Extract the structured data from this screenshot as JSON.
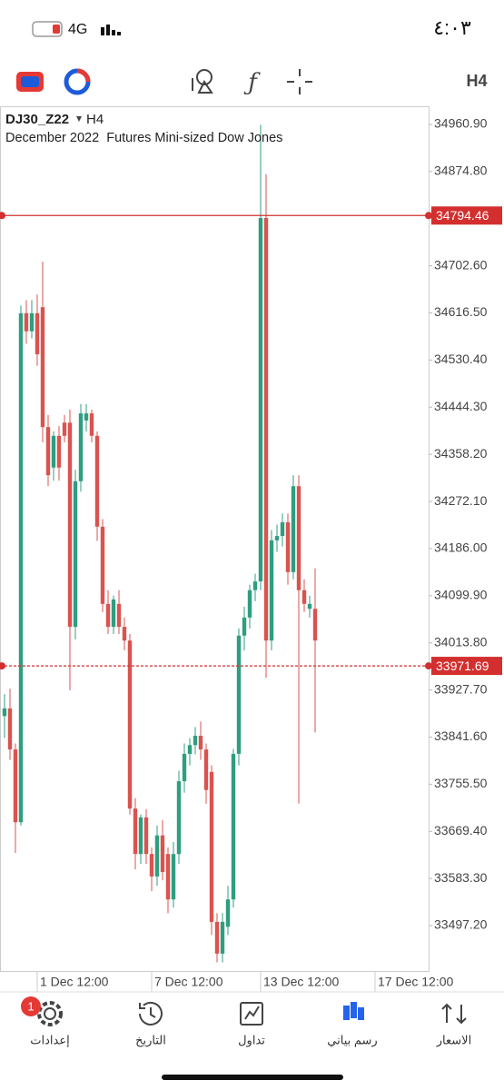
{
  "status_bar": {
    "time": "٤:٠٣",
    "network": "4G"
  },
  "toolbar": {
    "timeframe": "H4"
  },
  "chart_data": {
    "type": "candlestick",
    "symbol": "DJ30_Z22",
    "timeframe": "H4",
    "subtitle": "December 2022  Futures Mini-sized Dow Jones",
    "up_color": "#2f9e80",
    "down_color": "#d9534f",
    "ylim": [
      33412.6,
      34992.4
    ],
    "yticks": [
      {
        "value": 34960.9,
        "label": "34960.90"
      },
      {
        "value": 34874.8,
        "label": "34874.80"
      },
      {
        "value": 34702.6,
        "label": "34702.60"
      },
      {
        "value": 34616.5,
        "label": "34616.50"
      },
      {
        "value": 34530.4,
        "label": "34530.40"
      },
      {
        "value": 34444.3,
        "label": "34444.30"
      },
      {
        "value": 34358.2,
        "label": "34358.20"
      },
      {
        "value": 34272.1,
        "label": "34272.10"
      },
      {
        "value": 34186,
        "label": "34186.00"
      },
      {
        "value": 34099.9,
        "label": "34099.90"
      },
      {
        "value": 34013.8,
        "label": "34013.80"
      },
      {
        "value": 33927.7,
        "label": "33927.70"
      },
      {
        "value": 33841.6,
        "label": "33841.60"
      },
      {
        "value": 33755.5,
        "label": "33755.50"
      },
      {
        "value": 33669.4,
        "label": "33669.40"
      },
      {
        "value": 33583.3,
        "label": "33583.30"
      },
      {
        "value": 33497.2,
        "label": "33497.20"
      }
    ],
    "xlim": [
      -0.83,
      77.83
    ],
    "xticks": [
      {
        "value": 6,
        "label": "1 Dec 12:00"
      },
      {
        "value": 27,
        "label": "7 Dec 12:00"
      },
      {
        "value": 47,
        "label": "13 Dec 12:00"
      },
      {
        "value": 68,
        "label": "17 Dec 12:00"
      }
    ],
    "open": [
      33880,
      33894,
      33819,
      33686,
      34616,
      34583,
      34616,
      34627,
      34408,
      34334,
      34392,
      34416,
      34416,
      34043,
      34309,
      34420,
      34433,
      34392,
      34226,
      34085,
      34043,
      34085,
      34043,
      34018,
      33711,
      33628,
      33695,
      33628,
      33587,
      33662,
      33628,
      33545,
      33628,
      33761,
      33811,
      33827,
      33844,
      33819,
      33778,
      33504,
      33446,
      33495,
      33545,
      33811,
      34027,
      34060,
      34110,
      34126,
      34790,
      34018,
      34201,
      34209,
      34234,
      34143,
      34300,
      34110,
      34076,
      34076
    ],
    "high": [
      33920,
      33930,
      33830,
      34630,
      34640,
      34640,
      34650,
      34710,
      34430,
      34400,
      34410,
      34430,
      34440,
      34330,
      34450,
      34450,
      34440,
      34400,
      34240,
      34110,
      34100,
      34110,
      34060,
      34030,
      33730,
      33700,
      33710,
      33640,
      33680,
      33690,
      33640,
      33650,
      33780,
      33830,
      33840,
      33860,
      33870,
      33830,
      33790,
      33520,
      33520,
      33570,
      33820,
      34040,
      34080,
      34120,
      34140,
      34960,
      34870,
      34220,
      34230,
      34250,
      34250,
      34320,
      34320,
      34130,
      34100,
      34150
    ],
    "low": [
      33840,
      33800,
      33630,
      33680,
      34560,
      34570,
      34520,
      34380,
      34300,
      34310,
      34310,
      34380,
      33927,
      34020,
      34290,
      34400,
      34380,
      34200,
      34070,
      34030,
      34030,
      34030,
      34000,
      33700,
      33600,
      33610,
      33610,
      33560,
      33570,
      33580,
      33520,
      33530,
      33610,
      33740,
      33790,
      33810,
      33800,
      33720,
      33480,
      33430,
      33430,
      33480,
      33530,
      33790,
      34000,
      34040,
      34090,
      34110,
      33950,
      34000,
      34180,
      34190,
      34120,
      34130,
      33720,
      34070,
      34060,
      33850
    ],
    "close": [
      33894,
      33819,
      33686,
      34616,
      34583,
      34616,
      34541,
      34408,
      34320,
      34392,
      34334,
      34392,
      34043,
      34309,
      34433,
      34433,
      34392,
      34226,
      34085,
      34043,
      34093,
      34043,
      34018,
      33711,
      33628,
      33695,
      33628,
      33587,
      33662,
      33595,
      33545,
      33628,
      33761,
      33811,
      33827,
      33844,
      33819,
      33745,
      33504,
      33446,
      33504,
      33545,
      33811,
      34027,
      34060,
      34110,
      34126,
      34790,
      34018,
      34201,
      34209,
      34234,
      34143,
      34300,
      34110,
      34085,
      34085,
      34018
    ],
    "price_lines": [
      {
        "value": 34794.46,
        "color": "#d32f2f",
        "dashed": false
      },
      {
        "value": 33971.69,
        "color": "#d32f2f",
        "dashed": true
      }
    ]
  },
  "bottom_nav": {
    "items": [
      "الاسعار",
      "رسم بياني",
      "تداول",
      "التاريخ",
      "إعدادات"
    ],
    "active": 1,
    "active_color": "#2563eb",
    "badge": "1"
  }
}
